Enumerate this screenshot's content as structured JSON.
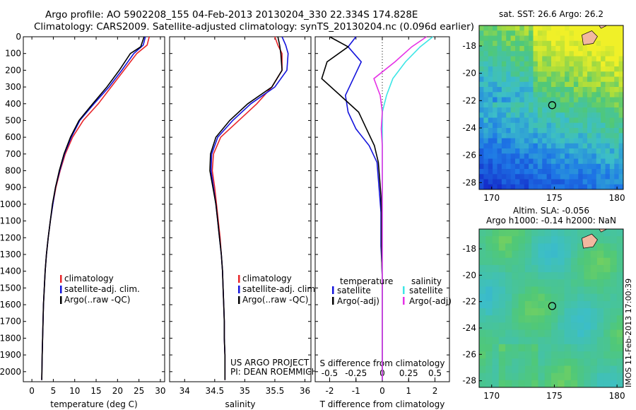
{
  "header": {
    "line1": "Argo profile: AO 5902208_155 04-Feb-2013 20130204_330 22.334S 174.828E",
    "line2": "Climatology: CARS2009. Satellite-adjusted climatology: synTS_20130204.nc (0.096d earlier)"
  },
  "depth_axis": {
    "ticks": [
      0,
      100,
      200,
      300,
      400,
      500,
      600,
      700,
      800,
      900,
      1000,
      1100,
      1200,
      1300,
      1400,
      1500,
      1600,
      1700,
      1800,
      1900,
      2000
    ],
    "range": [
      0,
      2060
    ],
    "inverted": true
  },
  "colors": {
    "climatology": "#e8262a",
    "satellite": "#1414dc",
    "argo": "#000000",
    "sal_satellite": "#3ce6e6",
    "sal_argo": "#e632e6"
  },
  "chart_data": [
    {
      "type": "line",
      "name": "temperature panel",
      "xlabel": "temperature (deg C)",
      "xticks": [
        "0",
        "5",
        "10",
        "15",
        "20",
        "25",
        "30"
      ],
      "xlim": [
        -2,
        31
      ],
      "legend_position": "lower-left",
      "legend": [
        "climatology",
        "satellite-adj. clim.",
        "Argo(..raw -QC)"
      ],
      "series": [
        {
          "name": "climatology",
          "color": "#e8262a",
          "x": [
            27.4,
            26.9,
            24.5,
            21.5,
            18.5,
            15.5,
            12.0,
            9.5,
            7.8,
            6.6,
            5.6,
            4.9,
            4.3,
            3.8,
            3.4,
            3.1,
            2.9,
            2.7,
            2.6,
            2.5,
            2.4,
            2.3
          ],
          "y": [
            0,
            50,
            100,
            200,
            300,
            400,
            500,
            600,
            700,
            800,
            900,
            1000,
            1100,
            1200,
            1300,
            1400,
            1500,
            1600,
            1700,
            1800,
            1900,
            2050
          ]
        },
        {
          "name": "satellite-adj. clim.",
          "color": "#1414dc",
          "x": [
            26.5,
            26.0,
            23.8,
            21.0,
            18.0,
            14.5,
            11.2,
            9.2,
            7.6,
            6.5,
            5.5,
            4.9,
            4.3,
            3.8,
            3.4,
            3.1,
            2.9,
            2.7,
            2.6,
            2.5,
            2.4,
            2.3
          ],
          "y": [
            0,
            50,
            100,
            200,
            300,
            400,
            500,
            600,
            700,
            800,
            900,
            1000,
            1100,
            1200,
            1300,
            1400,
            1500,
            1600,
            1700,
            1800,
            1900,
            2050
          ]
        },
        {
          "name": "Argo(..raw -QC)",
          "color": "#000000",
          "x": [
            26.2,
            25.4,
            23.0,
            20.4,
            17.5,
            14.2,
            11.0,
            9.0,
            7.5,
            6.4,
            5.5,
            4.8,
            4.3,
            3.8,
            3.4,
            3.1,
            2.9,
            2.7,
            2.6,
            2.5,
            2.4,
            2.3
          ],
          "y": [
            0,
            60,
            100,
            200,
            300,
            400,
            500,
            600,
            700,
            800,
            900,
            1000,
            1100,
            1200,
            1300,
            1400,
            1500,
            1600,
            1700,
            1800,
            1900,
            2050
          ]
        }
      ]
    },
    {
      "type": "line",
      "name": "salinity panel",
      "xlabel": "salinity",
      "xticks": [
        "34",
        "34.5",
        "35",
        "35.5",
        "36"
      ],
      "xlim": [
        33.75,
        36.1
      ],
      "legend_position": "lower-left",
      "legend": [
        "climatology",
        "satellite-adj. clim.",
        "Argo(..raw -QC)"
      ],
      "annotations": [
        "US ARGO PROJECT",
        "PI: DEAN ROEMMICH"
      ],
      "series": [
        {
          "name": "climatology",
          "color": "#e8262a",
          "x": [
            35.5,
            35.55,
            35.62,
            35.62,
            35.45,
            35.2,
            34.9,
            34.6,
            34.48,
            34.46,
            34.5,
            34.53,
            34.56,
            34.59,
            34.61,
            34.63,
            34.64,
            34.65,
            34.66,
            34.66,
            34.67,
            34.67
          ],
          "y": [
            0,
            50,
            100,
            200,
            300,
            400,
            500,
            600,
            700,
            800,
            900,
            1000,
            1100,
            1200,
            1300,
            1400,
            1500,
            1600,
            1700,
            1800,
            1900,
            2050
          ]
        },
        {
          "name": "satellite-adj. clim.",
          "color": "#1414dc",
          "x": [
            35.62,
            35.68,
            35.72,
            35.7,
            35.5,
            35.1,
            34.8,
            34.55,
            34.45,
            34.44,
            34.48,
            34.52,
            34.55,
            34.58,
            34.61,
            34.63,
            34.64,
            34.65,
            34.66,
            34.66,
            34.67,
            34.67
          ],
          "y": [
            0,
            50,
            100,
            200,
            300,
            400,
            500,
            600,
            700,
            800,
            900,
            1000,
            1100,
            1200,
            1300,
            1400,
            1500,
            1600,
            1700,
            1800,
            1900,
            2050
          ]
        },
        {
          "name": "Argo(..raw -QC)",
          "color": "#000000",
          "x": [
            35.55,
            35.58,
            35.6,
            35.62,
            35.45,
            35.05,
            34.75,
            34.52,
            34.43,
            34.42,
            34.47,
            34.52,
            34.55,
            34.58,
            34.61,
            34.63,
            34.64,
            34.65,
            34.66,
            34.66,
            34.67,
            34.67
          ],
          "y": [
            0,
            50,
            100,
            200,
            300,
            400,
            500,
            600,
            700,
            800,
            900,
            1000,
            1100,
            1200,
            1300,
            1400,
            1500,
            1600,
            1700,
            1800,
            1900,
            2050
          ]
        }
      ]
    },
    {
      "type": "line",
      "name": "difference panel",
      "xlabel": "T difference from climatology",
      "xlabel_top": "S difference from climatology",
      "xticks": [
        "-2",
        "-1",
        "0",
        "1",
        "2"
      ],
      "xlim": [
        -2.55,
        2.55
      ],
      "s_ticks": [
        "-0.5",
        "-0.25",
        "0",
        "0.25",
        "0.5"
      ],
      "s_tick_values": [
        -0.5,
        -0.25,
        0,
        0.25,
        0.5
      ],
      "legend_left": {
        "header": "temperature",
        "items": [
          "satellite",
          "Argo(-adj)"
        ]
      },
      "legend_right": {
        "header": "salinity",
        "items": [
          "satellite",
          "Argo(-adj)"
        ]
      },
      "series": [
        {
          "name": "temperature satellite",
          "color": "#1414dc",
          "x": [
            -1.0,
            -1.3,
            -0.8,
            -1.1,
            -1.4,
            -1.3,
            -1.0,
            -0.5,
            -0.2,
            -0.15,
            -0.1,
            -0.05,
            -0.05,
            -0.05,
            -0.02,
            0.0,
            0.0,
            0.0,
            0.0,
            0.0,
            0.0
          ],
          "y": [
            0,
            60,
            150,
            250,
            350,
            450,
            550,
            650,
            750,
            850,
            950,
            1050,
            1150,
            1250,
            1350,
            1450,
            1550,
            1650,
            1750,
            1850,
            2050
          ]
        },
        {
          "name": "temperature Argo(-adj)",
          "color": "#000000",
          "x": [
            -2.0,
            -1.3,
            -2.1,
            -2.3,
            -1.6,
            -0.9,
            -0.6,
            -0.3,
            -0.15,
            -0.1,
            -0.05,
            -0.03,
            -0.03,
            -0.03,
            -0.02,
            0.0,
            0.0,
            0.0,
            0.0,
            0.0,
            0.0
          ],
          "y": [
            0,
            60,
            150,
            250,
            350,
            450,
            550,
            650,
            750,
            850,
            950,
            1050,
            1150,
            1250,
            1350,
            1450,
            1550,
            1650,
            1750,
            1850,
            2050
          ]
        },
        {
          "name": "salinity satellite",
          "color": "#3ce6e6",
          "x": [
            0.48,
            0.36,
            0.22,
            0.1,
            0.04,
            0.0,
            0.0,
            0.0,
            0.0,
            0.0,
            0.0,
            0.0,
            0.0,
            0.0,
            0.0,
            0.0,
            0.0,
            0.0,
            0.0,
            0.0,
            0.0
          ],
          "y": [
            0,
            60,
            150,
            250,
            350,
            450,
            550,
            650,
            750,
            850,
            950,
            1050,
            1150,
            1250,
            1350,
            1450,
            1550,
            1650,
            1750,
            1850,
            2050
          ]
        },
        {
          "name": "salinity Argo(-adj)",
          "color": "#e632e6",
          "x": [
            0.42,
            0.28,
            0.12,
            -0.08,
            -0.02,
            0.0,
            -0.01,
            0.0,
            0.0,
            0.0,
            0.0,
            0.0,
            0.0,
            0.0,
            0.0,
            0.0,
            0.0,
            0.0,
            0.0,
            0.0,
            0.0
          ],
          "y": [
            0,
            60,
            150,
            250,
            350,
            450,
            550,
            650,
            750,
            850,
            950,
            1050,
            1150,
            1250,
            1350,
            1450,
            1550,
            1650,
            1750,
            1850,
            2050
          ]
        }
      ]
    },
    {
      "type": "heatmap",
      "name": "SST map",
      "title": "sat. SST: 26.6  Argo: 26.2",
      "xticks": [
        "170",
        "175",
        "180"
      ],
      "yticks": [
        "-18",
        "-20",
        "-22",
        "-24",
        "-26",
        "-28"
      ],
      "xlim": [
        169,
        180.5
      ],
      "ylim": [
        -28.5,
        -16.5
      ],
      "marker": {
        "lon": 174.828,
        "lat": -22.334
      }
    },
    {
      "type": "heatmap",
      "name": "SLA map",
      "title_line1": "Altim. SLA: -0.056",
      "title_line2": "Argo h1000: -0.14  h2000: NaN",
      "xticks": [
        "170",
        "175",
        "180"
      ],
      "yticks": [
        "-18",
        "-20",
        "-22",
        "-24",
        "-26",
        "-28"
      ],
      "xlim": [
        169,
        180.5
      ],
      "ylim": [
        -28.5,
        -16.5
      ],
      "marker": {
        "lon": 174.828,
        "lat": -22.334
      }
    }
  ],
  "side_label": "IMOS 11-Feb-2013 17:00:39"
}
